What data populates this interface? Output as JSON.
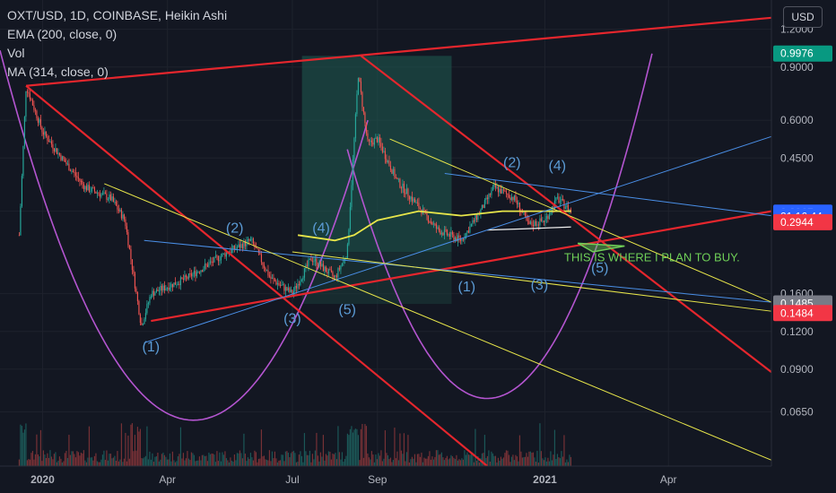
{
  "legend": {
    "symbol_line": "OXT/USD, 1D, COINBASE, Heikin Ashi",
    "ema_line": "EMA (200, close, 0)",
    "vol_line": "Vol",
    "ma_line": "MA (314, close, 0)"
  },
  "currency_button": "USD",
  "colors": {
    "background": "#131722",
    "up": "#26a69a",
    "down": "#ef5350",
    "trend_red": "#e5262d",
    "fib_blue": "#4a8fe7",
    "yellow": "#e8e64a",
    "magenta": "#b455d0",
    "long_zone": "#1f5c52",
    "annotation_green": "#6fcf57"
  },
  "chart_data": {
    "type": "candlestick",
    "symbol": "OXT/USD",
    "interval": "1D",
    "exchange": "COINBASE",
    "style": "Heikin Ashi",
    "y_scale": "log",
    "ylim": [
      0.043,
      1.5
    ],
    "xlim": [
      "2019-12-01",
      "2021-06-15"
    ],
    "price_axis_ticks": [
      "1.2000",
      "0.9000",
      "0.6000",
      "0.4500",
      "0.3000",
      "0.1600",
      "0.1200",
      "0.0900",
      "0.0650"
    ],
    "time_axis_ticks": [
      {
        "label": "2020",
        "date": "2020-01-01",
        "bold": true
      },
      {
        "label": "Apr",
        "date": "2020-04-01",
        "bold": false
      },
      {
        "label": "Jul",
        "date": "2020-07-01",
        "bold": false
      },
      {
        "label": "Sep",
        "date": "2020-09-01",
        "bold": false
      },
      {
        "label": "2021",
        "date": "2021-01-01",
        "bold": true
      },
      {
        "label": "Apr",
        "date": "2021-04-01",
        "bold": false
      }
    ],
    "price_labels": [
      {
        "value": "0.9976",
        "price": 0.9976,
        "color": "#089981"
      },
      {
        "value": "0.2967",
        "price": 0.2967,
        "color": "#2962ff"
      },
      {
        "value": "21:16:44",
        "price": 0.288,
        "color": "#2962ff"
      },
      {
        "value": "0.2944",
        "price": 0.276,
        "color": "#f23645"
      },
      {
        "value": "0.1485",
        "price": 0.1485,
        "color": "#787b86"
      },
      {
        "value": "0.1484",
        "price": 0.138,
        "color": "#f23645"
      }
    ],
    "price_path": [
      [
        "2019-12-15",
        0.25
      ],
      [
        "2019-12-20",
        0.78
      ],
      [
        "2020-01-01",
        0.55
      ],
      [
        "2020-01-15",
        0.45
      ],
      [
        "2020-02-01",
        0.36
      ],
      [
        "2020-02-20",
        0.33
      ],
      [
        "2020-03-01",
        0.28
      ],
      [
        "2020-03-13",
        0.125
      ],
      [
        "2020-03-20",
        0.16
      ],
      [
        "2020-04-15",
        0.18
      ],
      [
        "2020-05-15",
        0.22
      ],
      [
        "2020-06-01",
        0.24
      ],
      [
        "2020-06-15",
        0.18
      ],
      [
        "2020-07-01",
        0.16
      ],
      [
        "2020-07-15",
        0.21
      ],
      [
        "2020-08-01",
        0.18
      ],
      [
        "2020-08-10",
        0.22
      ],
      [
        "2020-08-18",
        0.85
      ],
      [
        "2020-08-25",
        0.5
      ],
      [
        "2020-09-01",
        0.52
      ],
      [
        "2020-09-15",
        0.38
      ],
      [
        "2020-10-01",
        0.31
      ],
      [
        "2020-10-15",
        0.26
      ],
      [
        "2020-11-01",
        0.24
      ],
      [
        "2020-11-15",
        0.3
      ],
      [
        "2020-11-25",
        0.36
      ],
      [
        "2020-12-10",
        0.33
      ],
      [
        "2020-12-20",
        0.27
      ],
      [
        "2021-01-01",
        0.28
      ],
      [
        "2021-01-10",
        0.33
      ],
      [
        "2021-01-20",
        0.3
      ]
    ],
    "ema_200": [
      [
        "2020-07-05",
        0.25
      ],
      [
        "2020-08-01",
        0.24
      ],
      [
        "2020-08-15",
        0.25
      ],
      [
        "2020-09-01",
        0.28
      ],
      [
        "2020-10-01",
        0.3
      ],
      [
        "2020-11-01",
        0.29
      ],
      [
        "2020-12-01",
        0.3
      ],
      [
        "2021-01-20",
        0.3
      ]
    ],
    "ma_314": [
      [
        "2020-11-20",
        0.26
      ],
      [
        "2020-12-15",
        0.262
      ],
      [
        "2021-01-20",
        0.266
      ]
    ],
    "long_position": {
      "start": "2020-07-08",
      "end": "2020-10-25",
      "entry": 0.22,
      "target": 0.98,
      "stop": 0.148
    },
    "trend_lines": [
      {
        "color": "red",
        "points": [
          [
            "2019-12-20",
            0.78
          ],
          [
            "2021-06-15",
            1.31
          ]
        ]
      },
      {
        "color": "red",
        "points": [
          [
            "2019-12-20",
            0.78
          ],
          [
            "2020-11-20",
            0.043
          ]
        ]
      },
      {
        "color": "red",
        "points": [
          [
            "2020-08-20",
            0.98
          ],
          [
            "2021-06-15",
            0.088
          ]
        ]
      },
      {
        "color": "red",
        "points": [
          [
            "2020-03-20",
            0.13
          ],
          [
            "2021-06-15",
            0.3
          ]
        ]
      },
      {
        "color": "blue",
        "points": [
          [
            "2020-03-15",
            0.11
          ],
          [
            "2021-06-15",
            0.53
          ]
        ]
      },
      {
        "color": "blue",
        "points": [
          [
            "2020-03-15",
            0.24
          ],
          [
            "2021-06-15",
            0.15
          ]
        ]
      },
      {
        "color": "blue",
        "points": [
          [
            "2020-10-20",
            0.4
          ],
          [
            "2021-06-15",
            0.29
          ]
        ]
      },
      {
        "color": "yellow",
        "points": [
          [
            "2020-02-15",
            0.37
          ],
          [
            "2021-06-15",
            0.045
          ]
        ]
      },
      {
        "color": "yellow",
        "points": [
          [
            "2020-09-10",
            0.52
          ],
          [
            "2021-06-15",
            0.15
          ]
        ]
      },
      {
        "color": "yellow",
        "points": [
          [
            "2020-07-01",
            0.22
          ],
          [
            "2021-06-15",
            0.14
          ]
        ]
      }
    ],
    "wave_labels": [
      {
        "text": "(1)",
        "date": "2020-03-20",
        "price": 0.103
      },
      {
        "text": "(2)",
        "date": "2020-05-20",
        "price": 0.255
      },
      {
        "text": "(3)",
        "date": "2020-07-01",
        "price": 0.128
      },
      {
        "text": "(4)",
        "date": "2020-07-22",
        "price": 0.255
      },
      {
        "text": "(5)",
        "date": "2020-08-10",
        "price": 0.137
      },
      {
        "text": "(1)",
        "date": "2020-11-05",
        "price": 0.163
      },
      {
        "text": "(2)",
        "date": "2020-12-08",
        "price": 0.42
      },
      {
        "text": "(3)",
        "date": "2020-12-28",
        "price": 0.165
      },
      {
        "text": "(4)",
        "date": "2021-01-10",
        "price": 0.41
      },
      {
        "text": "(5)",
        "date": "2021-02-10",
        "price": 0.188
      }
    ],
    "annotations": [
      {
        "text": "THIS IS WHERE I PLAN TO BUY.",
        "date": "2021-01-15",
        "price": 0.205
      }
    ],
    "buy_zone_triangle": [
      [
        "2021-01-25",
        0.235
      ],
      [
        "2021-02-28",
        0.23
      ],
      [
        "2021-02-05",
        0.22
      ]
    ],
    "curves": [
      {
        "name": "left-arc",
        "from": "2019-12-01",
        "to": "2020-08-25",
        "bottom_date": "2020-04-20",
        "bottom": 0.061
      },
      {
        "name": "right-arc",
        "from": "2020-08-10",
        "to": "2021-03-20",
        "bottom_date": "2020-11-20",
        "bottom": 0.072
      }
    ]
  }
}
